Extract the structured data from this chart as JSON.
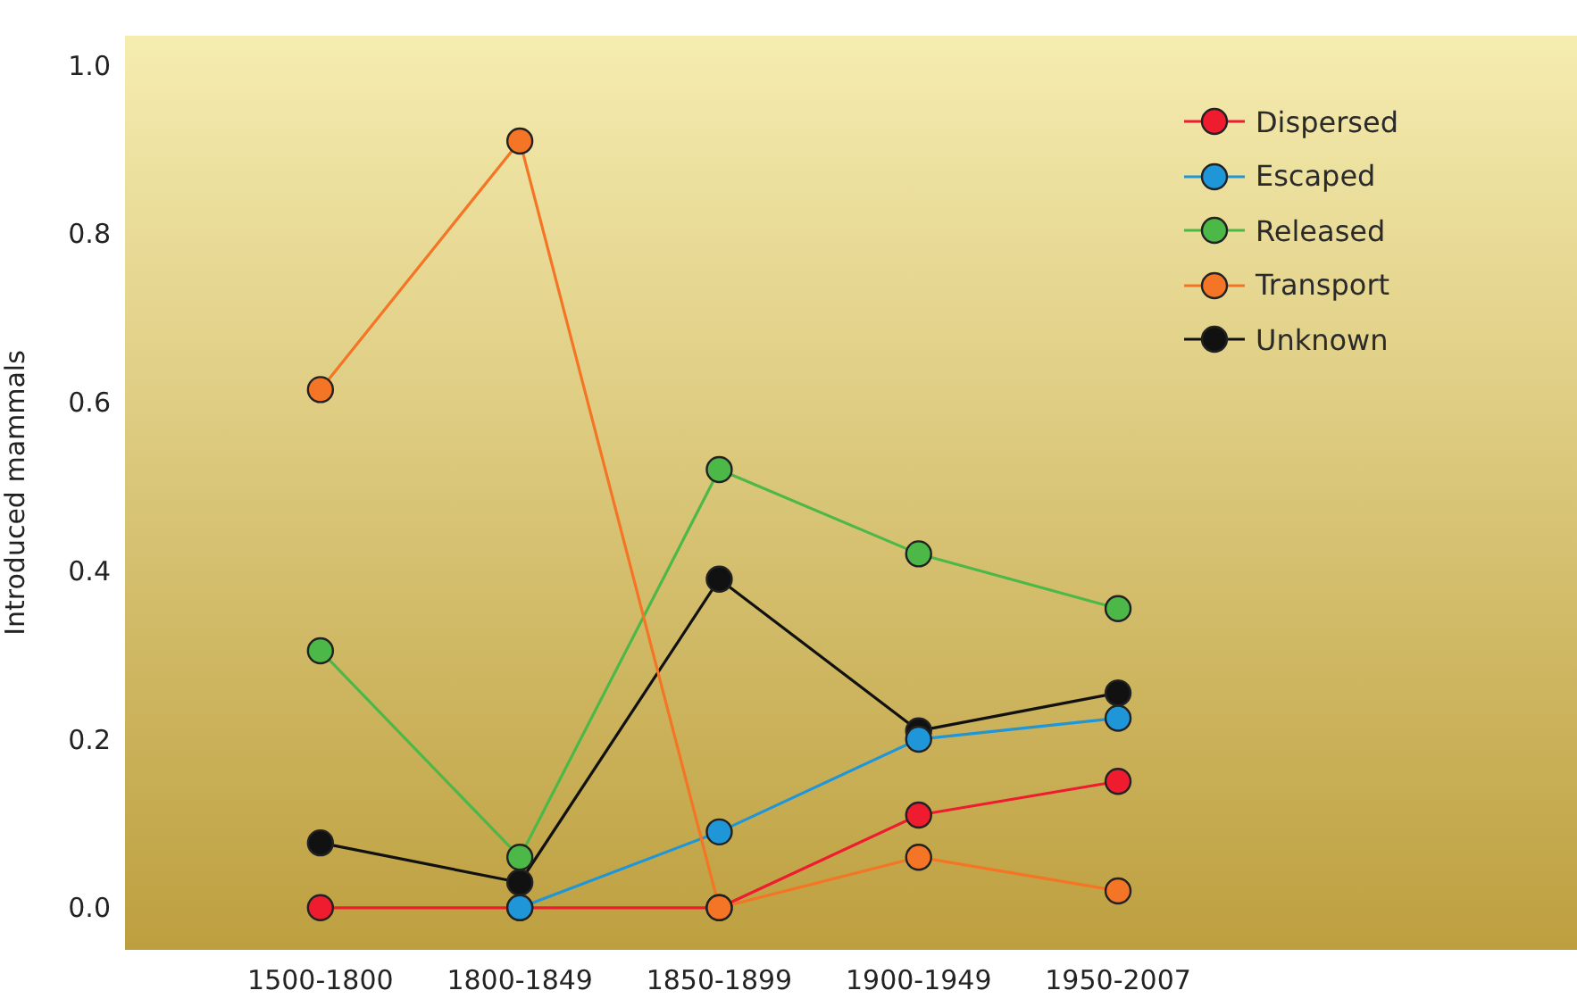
{
  "chart_data": {
    "type": "line",
    "ylabel": "Introduced mammals",
    "categories": [
      "1500-1800",
      "1800-1849",
      "1850-1899",
      "1900-1949",
      "1950-2007"
    ],
    "series": [
      {
        "name": "Dispersed",
        "color": "#ee1c2e",
        "values": [
          0,
          0,
          0,
          0.11,
          0.15
        ]
      },
      {
        "name": "Escaped",
        "color": "#1e96d8",
        "values": [
          null,
          0,
          0.09,
          0.2,
          0.225
        ]
      },
      {
        "name": "Released",
        "color": "#4cb848",
        "values": [
          0.305,
          0.06,
          0.52,
          0.42,
          0.355
        ]
      },
      {
        "name": "Transport",
        "color": "#f47525",
        "values": [
          0.615,
          0.91,
          0,
          0.06,
          0.02
        ]
      },
      {
        "name": "Unknown",
        "color": "#111111",
        "values": [
          0.077,
          0.03,
          0.39,
          0.21,
          0.255
        ]
      }
    ],
    "ylim": [
      -0.05,
      1.035
    ],
    "yticks": [
      {
        "value": 0,
        "label": "0.0"
      },
      {
        "value": 0.2,
        "label": "0.2"
      },
      {
        "value": 0.4,
        "label": "0.4"
      },
      {
        "value": 0.6,
        "label": "0.6"
      },
      {
        "value": 0.8,
        "label": "0.8"
      },
      {
        "value": 1,
        "label": "1.0"
      }
    ],
    "grid": false,
    "legend": "top right",
    "marker": "circle",
    "line_style": "solid"
  }
}
